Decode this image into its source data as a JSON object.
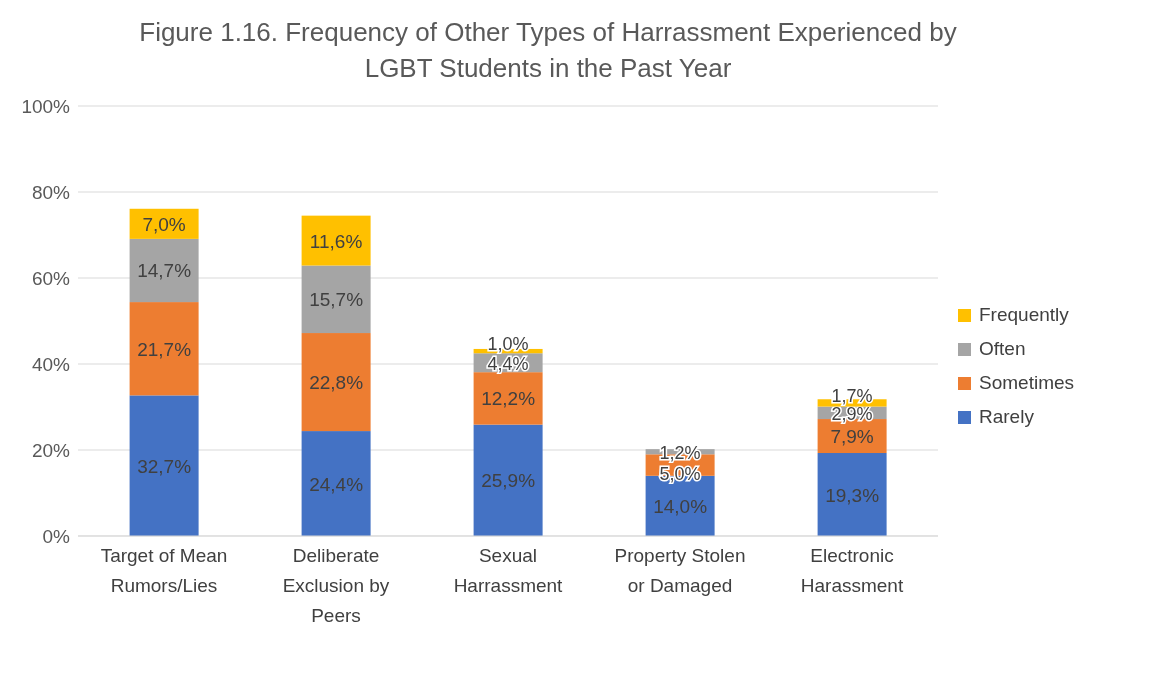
{
  "chart_data": {
    "type": "bar",
    "title": "Figure 1.16. Frequency of Other Types of Harrassment Experienced by LGBT Students in the Past Year",
    "stacked": true,
    "categories": [
      "Target of Mean Rumors/Lies",
      "Deliberate Exclusion by Peers",
      "Sexual Harrassment",
      "Property Stolen or Damaged",
      "Electronic Harassment"
    ],
    "series": [
      {
        "name": "Rarely",
        "color": "#4472c4",
        "values": [
          32.7,
          24.4,
          25.9,
          14.0,
          19.3
        ],
        "value_labels": [
          "32,7%",
          "24,4%",
          "25,9%",
          "14,0%",
          "19,3%"
        ]
      },
      {
        "name": "Sometimes",
        "color": "#ed7d31",
        "values": [
          21.7,
          22.8,
          12.2,
          5.0,
          7.9
        ],
        "value_labels": [
          "21,7%",
          "22,8%",
          "12,2%",
          "5,0%",
          "7,9%"
        ]
      },
      {
        "name": "Often",
        "color": "#a5a5a5",
        "values": [
          14.7,
          15.7,
          4.4,
          1.2,
          2.9
        ],
        "value_labels": [
          "14,7%",
          "15,7%",
          "4,4%",
          "1,2%",
          "2,9%"
        ]
      },
      {
        "name": "Frequently",
        "color": "#ffc000",
        "values": [
          7.0,
          11.6,
          1.0,
          null,
          1.7
        ],
        "value_labels": [
          "7,0%",
          "11,6%",
          "1,0%",
          null,
          "1,7%"
        ]
      }
    ],
    "ylim": [
      0,
      100
    ],
    "yticks": [
      {
        "value": 0,
        "label": "0%"
      },
      {
        "value": 20,
        "label": "20%"
      },
      {
        "value": 40,
        "label": "40%"
      },
      {
        "value": 60,
        "label": "60%"
      },
      {
        "value": 80,
        "label": "80%"
      },
      {
        "value": 100,
        "label": "100%"
      }
    ],
    "grid": "y",
    "legend": "right"
  }
}
